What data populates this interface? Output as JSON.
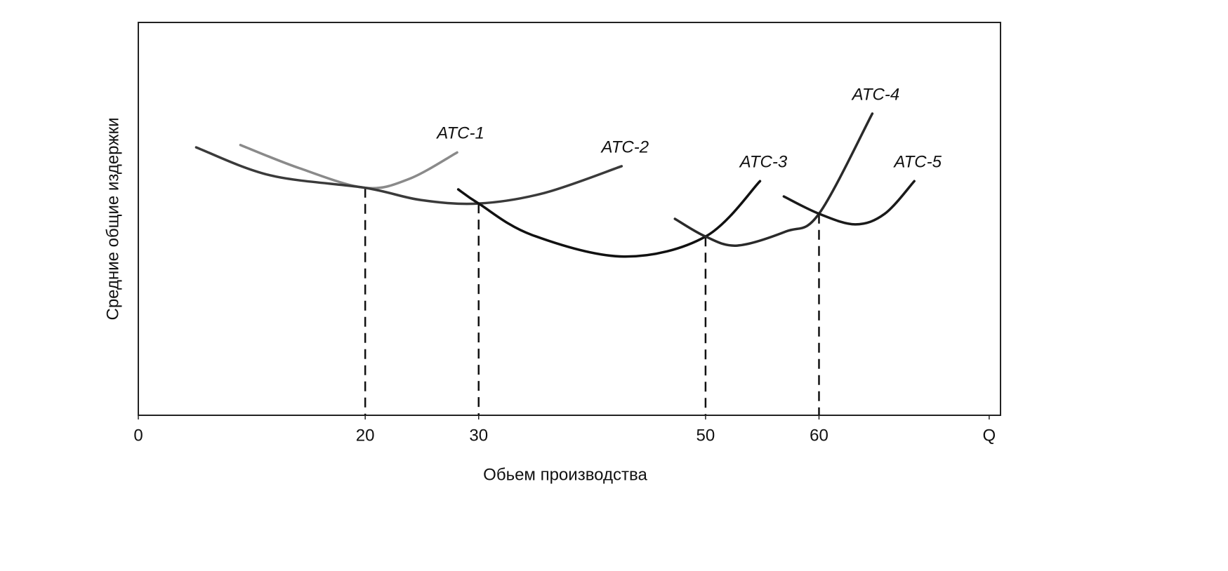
{
  "chart_data": {
    "type": "line",
    "y_label": "Средние общие издержки",
    "x_label": "Обьем производства",
    "xlim": [
      0,
      76
    ],
    "ylim": [
      0,
      100
    ],
    "xticks": [
      0,
      20,
      30,
      50,
      60,
      {
        "value": 75,
        "label": "Q"
      }
    ],
    "reference_lines": [
      {
        "x": 20,
        "y": 57.9,
        "color": "#111"
      },
      {
        "x": 30,
        "y": 53.9,
        "color": "#111"
      },
      {
        "x": 50,
        "y": 45.5,
        "color": "#111"
      },
      {
        "x": 60,
        "y": 51.3,
        "color": "#111"
      }
    ],
    "series": [
      {
        "name": "ATC-1",
        "color": "#8a8a8a",
        "x": [
          9,
          14.2,
          20,
          23.9,
          28.1
        ],
        "values": [
          68.8,
          62.9,
          57.9,
          60.2,
          66.9
        ]
      },
      {
        "name": "ATC-2",
        "color": "#3a3a3a",
        "x": [
          5.1,
          11.6,
          20,
          24.9,
          30,
          35.8,
          42.6
        ],
        "values": [
          68.2,
          61.1,
          57.9,
          54.8,
          53.9,
          56.6,
          63.4
        ]
      },
      {
        "name": "ATC-3",
        "color": "#111111",
        "x": [
          28.2,
          30,
          34.7,
          42.8,
          50,
          54.8
        ],
        "values": [
          57.5,
          53.9,
          45.9,
          40.4,
          45.5,
          59.6
        ]
      },
      {
        "name": "ATC-4",
        "color": "#2a2a2a",
        "x": [
          47.3,
          50,
          52.8,
          57.1,
          60,
          64.7
        ],
        "values": [
          50,
          45.5,
          43.2,
          46.8,
          51.3,
          76.8
        ]
      },
      {
        "name": "ATC-5",
        "color": "#1a1a1a",
        "x": [
          56.9,
          60,
          63.2,
          65.8,
          68.4
        ],
        "values": [
          55.7,
          51.3,
          48.6,
          51.3,
          59.6
        ]
      }
    ]
  }
}
